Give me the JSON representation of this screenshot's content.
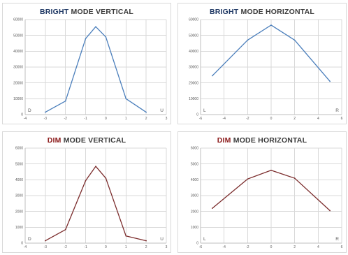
{
  "chart_data": [
    {
      "id": "bright-vertical",
      "type": "line",
      "title_accent": "BRIGHT",
      "title_rest": " MODE VERTICAL",
      "accent_color": "#1f3864",
      "line_color": "#4a7ebb",
      "corner_left": "D",
      "corner_right": "U",
      "xlim": [
        -4,
        3
      ],
      "ylim": [
        0,
        60000
      ],
      "x_ticks": [
        -4,
        -3,
        -2,
        -1,
        0,
        1,
        2,
        3
      ],
      "y_ticks": [
        0,
        10000,
        20000,
        30000,
        40000,
        50000,
        60000
      ],
      "grid": true,
      "x": [
        -3,
        -2,
        -1,
        -0.5,
        0,
        1,
        2
      ],
      "y": [
        1500,
        8500,
        48000,
        55500,
        49000,
        10000,
        1500
      ]
    },
    {
      "id": "bright-horizontal",
      "type": "line",
      "title_accent": "BRIGHT",
      "title_rest": " MODE HORIZONTAL",
      "accent_color": "#1f3864",
      "line_color": "#4a7ebb",
      "corner_left": "L",
      "corner_right": "R",
      "xlim": [
        -6,
        6
      ],
      "ylim": [
        0,
        60000
      ],
      "x_ticks": [
        -6,
        -4,
        -2,
        0,
        2,
        4,
        6
      ],
      "y_ticks": [
        0,
        10000,
        20000,
        30000,
        40000,
        50000,
        60000
      ],
      "grid": true,
      "x": [
        -5,
        -2,
        0,
        2,
        5
      ],
      "y": [
        24500,
        47000,
        56500,
        47000,
        21000
      ]
    },
    {
      "id": "dim-vertical",
      "type": "line",
      "title_accent": "DIM",
      "title_rest": " MODE VERTICAL",
      "accent_color": "#8b1a1a",
      "line_color": "#7b2c2c",
      "corner_left": "D",
      "corner_right": "U",
      "xlim": [
        -4,
        3
      ],
      "ylim": [
        0,
        6000
      ],
      "x_ticks": [
        -4,
        -3,
        -2,
        -1,
        0,
        1,
        2,
        3
      ],
      "y_ticks": [
        0,
        1000,
        2000,
        3000,
        4000,
        5000,
        6000
      ],
      "grid": true,
      "x": [
        -3,
        -2,
        -1,
        -0.5,
        0,
        1,
        2
      ],
      "y": [
        150,
        850,
        3950,
        4850,
        4100,
        450,
        150
      ]
    },
    {
      "id": "dim-horizontal",
      "type": "line",
      "title_accent": "DIM",
      "title_rest": " MODE HORIZONTAL",
      "accent_color": "#8b1a1a",
      "line_color": "#7b2c2c",
      "corner_left": "L",
      "corner_right": "R",
      "xlim": [
        -6,
        6
      ],
      "ylim": [
        0,
        6000
      ],
      "x_ticks": [
        -6,
        -4,
        -2,
        0,
        2,
        4,
        6
      ],
      "y_ticks": [
        0,
        1000,
        2000,
        3000,
        4000,
        5000,
        6000
      ],
      "grid": true,
      "x": [
        -5,
        -2,
        0,
        2,
        5
      ],
      "y": [
        2200,
        4050,
        4600,
        4100,
        2050
      ]
    }
  ]
}
